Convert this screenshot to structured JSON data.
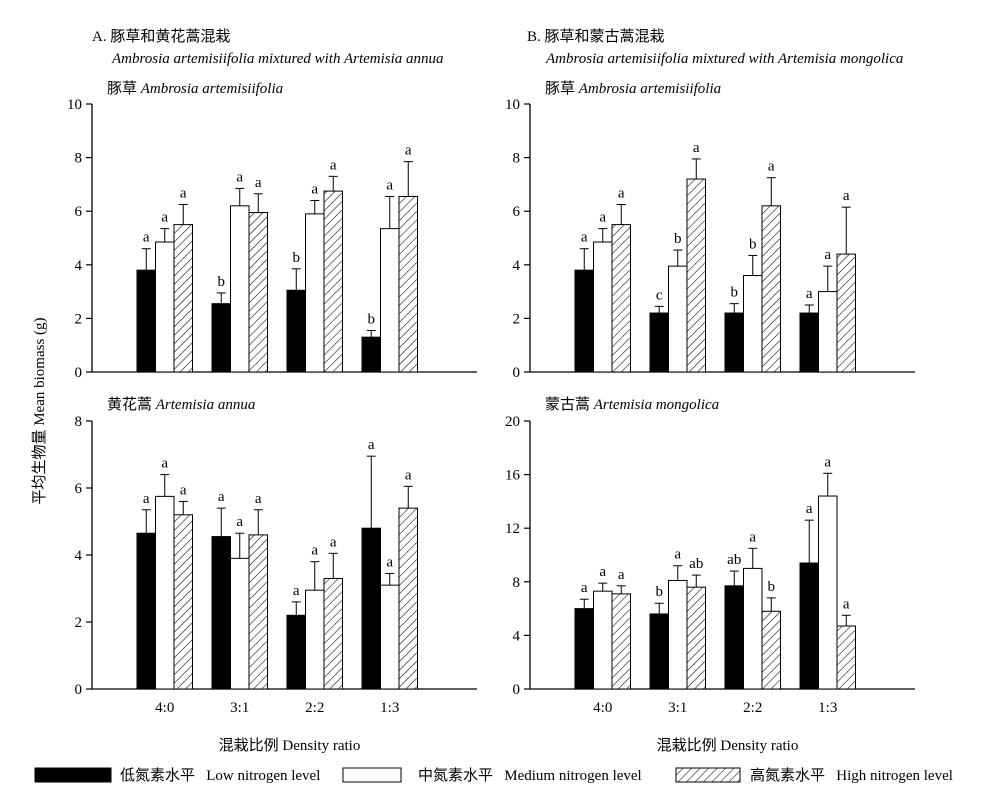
{
  "colors": {
    "low": "#000000",
    "medium": "#ffffff",
    "high_hatch": "#000000",
    "background": "#ffffff"
  },
  "y_axis_label": "平均生物量 Mean biomass (g)",
  "legend": {
    "placement": "bottom",
    "items": [
      {
        "key": "low",
        "pattern": "solid-black",
        "label": "低氮素水平   Low nitrogen level"
      },
      {
        "key": "medium",
        "pattern": "white",
        "label": "中氮素水平   Medium nitrogen level"
      },
      {
        "key": "high",
        "pattern": "hatched",
        "label": "高氮素水平   High nitrogen level"
      }
    ]
  },
  "panels": [
    {
      "key": "A",
      "title_cn": "A. 豚草和黄花蒿混栽",
      "title_en": "Ambrosia artemisiifolia mixtured with Artemisia annua"
    },
    {
      "key": "B",
      "title_cn": "B. 豚草和蒙古蒿混栽",
      "title_en": "Ambrosia artemisiifolia mixtured with Artemisia mongolica"
    }
  ],
  "chart_data": [
    {
      "type": "bar",
      "panel": "A-top",
      "grid": false,
      "title": "豚草  Ambrosia artemisiifolia",
      "xlabel": "",
      "ylabel": "平均生物量 Mean biomass (g)",
      "ylim": [
        0,
        10
      ],
      "yticks": [
        0,
        2,
        4,
        6,
        8,
        10
      ],
      "categories": [
        "4:0",
        "3:1",
        "2:2",
        "1:3"
      ],
      "series": [
        {
          "name": "低氮素水平 Low nitrogen level",
          "values": [
            3.8,
            2.55,
            3.05,
            1.3
          ],
          "errors": [
            0.8,
            0.4,
            0.8,
            0.25
          ],
          "labels": [
            "a",
            "b",
            "b",
            "b"
          ]
        },
        {
          "name": "中氮素水平 Medium nitrogen level",
          "values": [
            4.85,
            6.2,
            5.9,
            5.35
          ],
          "errors": [
            0.5,
            0.65,
            0.5,
            1.2
          ],
          "labels": [
            "a",
            "a",
            "a",
            "a"
          ]
        },
        {
          "name": "高氮素水平 High nitrogen level",
          "values": [
            5.5,
            5.95,
            6.75,
            6.55
          ],
          "errors": [
            0.75,
            0.7,
            0.55,
            1.3
          ],
          "labels": [
            "a",
            "a",
            "a",
            "a"
          ]
        }
      ]
    },
    {
      "type": "bar",
      "panel": "A-bottom",
      "grid": false,
      "title": "黄花蒿  Artemisia annua",
      "xlabel": "混栽比例  Density ratio",
      "ylabel": "平均生物量 Mean biomass (g)",
      "ylim": [
        0,
        8
      ],
      "yticks": [
        0,
        2,
        4,
        6,
        8
      ],
      "categories": [
        "4:0",
        "3:1",
        "2:2",
        "1:3"
      ],
      "series": [
        {
          "name": "低氮素水平 Low nitrogen level",
          "values": [
            4.65,
            4.55,
            2.2,
            4.8
          ],
          "errors": [
            0.7,
            0.85,
            0.4,
            2.15
          ],
          "labels": [
            "a",
            "a",
            "a",
            "a"
          ]
        },
        {
          "name": "中氮素水平 Medium nitrogen level",
          "values": [
            5.75,
            3.9,
            2.95,
            3.1
          ],
          "errors": [
            0.65,
            0.75,
            0.85,
            0.35
          ],
          "labels": [
            "a",
            "a",
            "a",
            "a"
          ]
        },
        {
          "name": "高氮素水平 High nitrogen level",
          "values": [
            5.2,
            4.6,
            3.3,
            5.4
          ],
          "errors": [
            0.4,
            0.75,
            0.75,
            0.65
          ],
          "labels": [
            "a",
            "a",
            "a",
            "a"
          ]
        }
      ]
    },
    {
      "type": "bar",
      "panel": "B-top",
      "grid": false,
      "title": "豚草  Ambrosia artemisiifolia",
      "xlabel": "",
      "ylabel": "平均生物量 Mean biomass (g)",
      "ylim": [
        0,
        10
      ],
      "yticks": [
        0,
        2,
        4,
        6,
        8,
        10
      ],
      "categories": [
        "4:0",
        "3:1",
        "2:2",
        "1:3"
      ],
      "series": [
        {
          "name": "低氮素水平 Low nitrogen level",
          "values": [
            3.8,
            2.2,
            2.2,
            2.2
          ],
          "errors": [
            0.8,
            0.25,
            0.35,
            0.3
          ],
          "labels": [
            "a",
            "c",
            "b",
            "a"
          ]
        },
        {
          "name": "中氮素水平 Medium nitrogen level",
          "values": [
            4.85,
            3.95,
            3.6,
            3.0
          ],
          "errors": [
            0.5,
            0.6,
            0.75,
            0.95
          ],
          "labels": [
            "a",
            "b",
            "b",
            "a"
          ]
        },
        {
          "name": "高氮素水平 High nitrogen level",
          "values": [
            5.5,
            7.2,
            6.2,
            4.4
          ],
          "errors": [
            0.75,
            0.75,
            1.05,
            1.75
          ],
          "labels": [
            "a",
            "a",
            "a",
            "a"
          ]
        }
      ]
    },
    {
      "type": "bar",
      "panel": "B-bottom",
      "grid": false,
      "title": "蒙古蒿  Artemisia mongolica",
      "xlabel": "混栽比例  Density ratio",
      "ylabel": "平均生物量 Mean biomass (g)",
      "ylim": [
        0,
        20
      ],
      "yticks": [
        0,
        4,
        8,
        12,
        16,
        20
      ],
      "categories": [
        "4:0",
        "3:1",
        "2:2",
        "1:3"
      ],
      "series": [
        {
          "name": "低氮素水平 Low nitrogen level",
          "values": [
            6.0,
            5.6,
            7.7,
            9.4
          ],
          "errors": [
            0.7,
            0.8,
            1.1,
            3.2
          ],
          "labels": [
            "a",
            "b",
            "ab",
            "a"
          ]
        },
        {
          "name": "中氮素水平 Medium nitrogen level",
          "values": [
            7.3,
            8.1,
            9.0,
            14.4
          ],
          "errors": [
            0.6,
            1.1,
            1.5,
            1.7
          ],
          "labels": [
            "a",
            "a",
            "a",
            "a"
          ]
        },
        {
          "name": "高氮素水平 High nitrogen level",
          "values": [
            7.1,
            7.6,
            5.8,
            4.7
          ],
          "errors": [
            0.6,
            0.9,
            1.0,
            0.8
          ],
          "labels": [
            "a",
            "ab",
            "b",
            "a"
          ]
        }
      ]
    }
  ]
}
